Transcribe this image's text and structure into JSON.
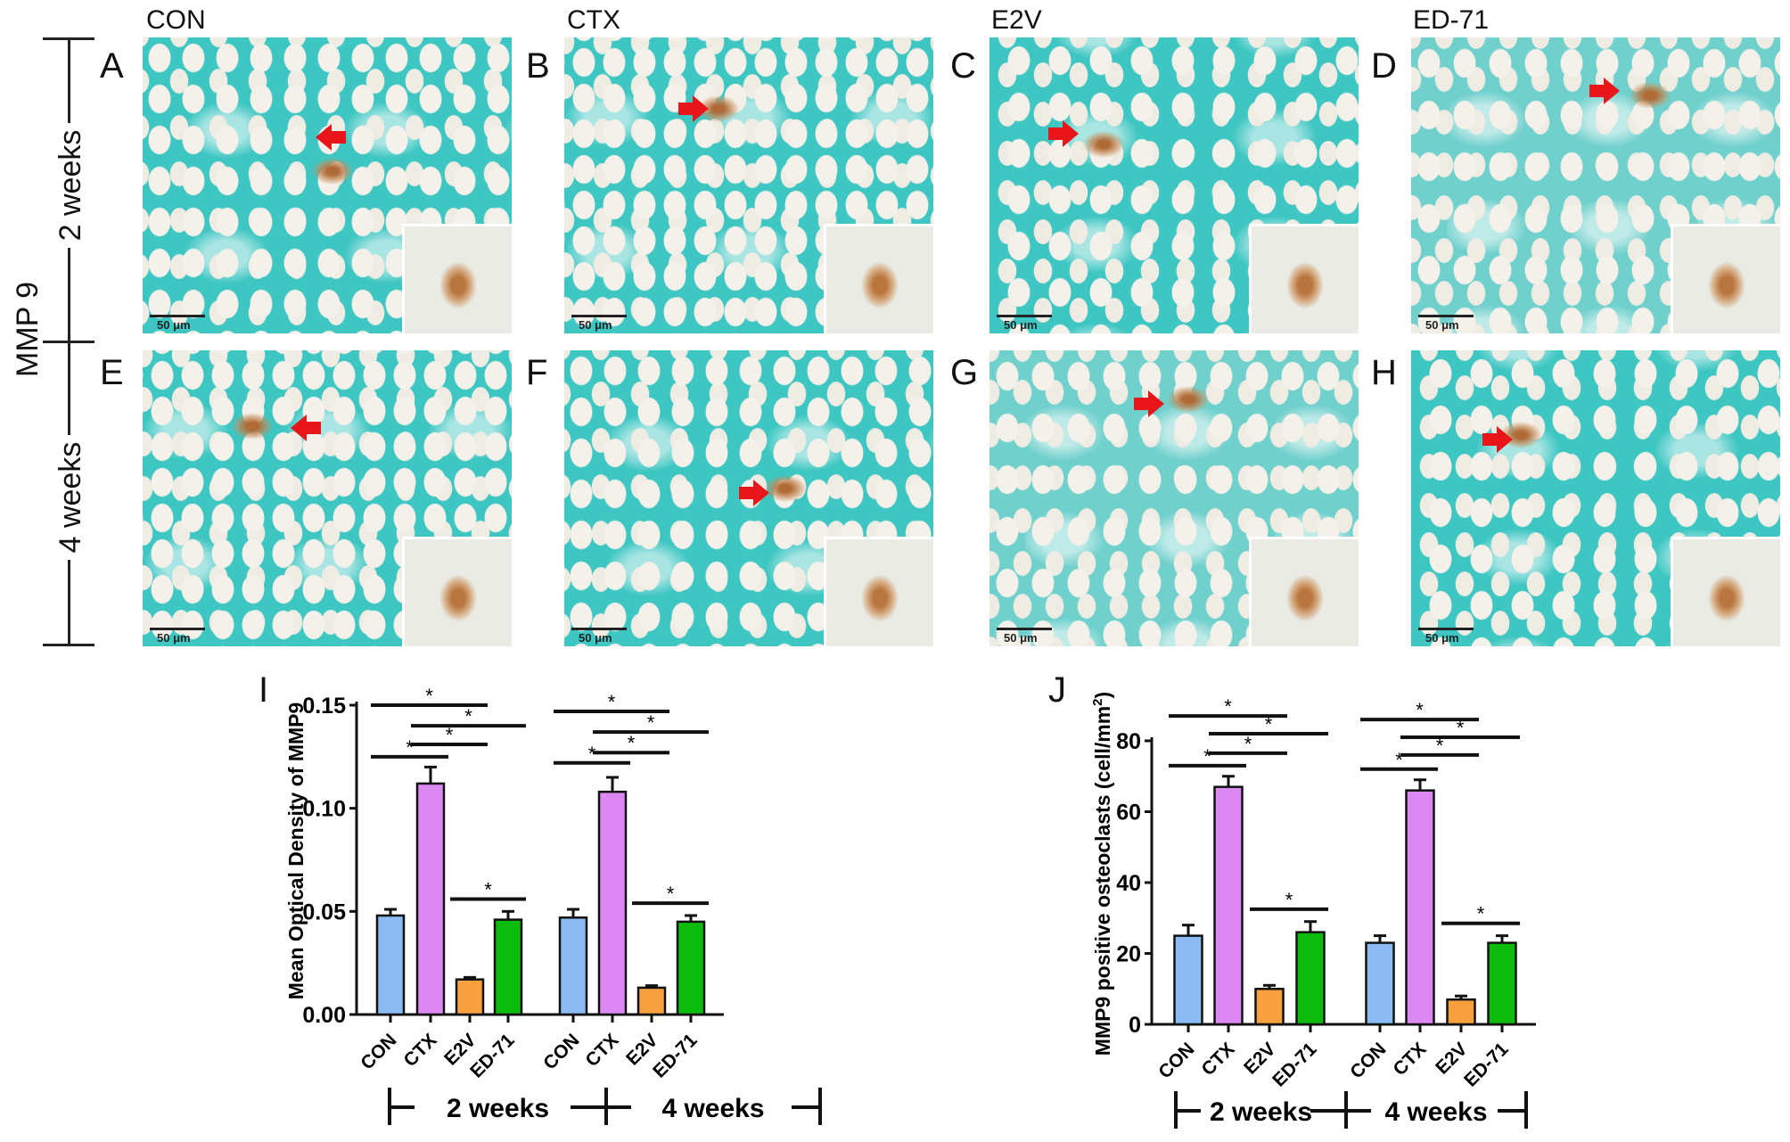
{
  "columns": [
    "CON",
    "CTX",
    "E2V",
    "ED-71"
  ],
  "row_labels": [
    "2 weeks",
    "4 weeks"
  ],
  "stain_label": "MMP 9",
  "panels": [
    {
      "letter": "A",
      "scale": "50 μm"
    },
    {
      "letter": "B",
      "scale": "50 μm"
    },
    {
      "letter": "C",
      "scale": "50 μm"
    },
    {
      "letter": "D",
      "scale": "50 μm"
    },
    {
      "letter": "E",
      "scale": "50 μm"
    },
    {
      "letter": "F",
      "scale": "50 μm"
    },
    {
      "letter": "G",
      "scale": "50 μm"
    },
    {
      "letter": "H",
      "scale": "50 μm"
    }
  ],
  "colors": {
    "CON": "#8cbaf2",
    "CTX": "#dc88f2",
    "E2V": "#f7a03e",
    "ED-71": "#0cbc0c",
    "arrow": "#e8151b"
  },
  "chart_data": [
    {
      "panel_letter": "I",
      "type": "bar",
      "ylabel": "Mean Optical Density of MMP9",
      "ylim": [
        0,
        0.15
      ],
      "yticks": [
        "0.00",
        "0.05",
        "0.10",
        "0.15"
      ],
      "ytick_values": [
        0,
        0.05,
        0.1,
        0.15
      ],
      "groups": [
        "2 weeks",
        "4 weeks"
      ],
      "categories": [
        "CON",
        "CTX",
        "E2V",
        "ED-71"
      ],
      "series": [
        {
          "name": "2 weeks",
          "values": [
            0.048,
            0.112,
            0.017,
            0.046
          ],
          "errors": [
            0.003,
            0.008,
            0.001,
            0.004
          ]
        },
        {
          "name": "4 weeks",
          "values": [
            0.047,
            0.108,
            0.013,
            0.045
          ],
          "errors": [
            0.004,
            0.007,
            0.001,
            0.003
          ]
        }
      ],
      "significance": [
        {
          "group": 0,
          "from": 0,
          "to": 2,
          "y": 0.15,
          "label": "*"
        },
        {
          "group": 0,
          "from": 1,
          "to": 3,
          "y": 0.14,
          "label": "*"
        },
        {
          "group": 0,
          "from": 1,
          "to": 2,
          "y": 0.131,
          "label": "*"
        },
        {
          "group": 0,
          "from": 0,
          "to": 1,
          "y": 0.125,
          "label": "*"
        },
        {
          "group": 0,
          "from": 2,
          "to": 3,
          "y": 0.056,
          "label": "*"
        },
        {
          "group": 1,
          "from": 0,
          "to": 2,
          "y": 0.147,
          "label": "*"
        },
        {
          "group": 1,
          "from": 1,
          "to": 3,
          "y": 0.137,
          "label": "*"
        },
        {
          "group": 1,
          "from": 1,
          "to": 2,
          "y": 0.127,
          "label": "*"
        },
        {
          "group": 1,
          "from": 0,
          "to": 1,
          "y": 0.122,
          "label": "*"
        },
        {
          "group": 1,
          "from": 2,
          "to": 3,
          "y": 0.054,
          "label": "*"
        }
      ]
    },
    {
      "panel_letter": "J",
      "type": "bar",
      "ylabel": "MMP9 positive osteoclasts (cell/mm",
      "ylabel_sup": "2",
      "ylabel_end": ")",
      "ylim": [
        0,
        80
      ],
      "yticks": [
        "0",
        "20",
        "40",
        "60",
        "80"
      ],
      "ytick_values": [
        0,
        20,
        40,
        60,
        80
      ],
      "groups": [
        "2 weeks",
        "4 weeks"
      ],
      "categories": [
        "CON",
        "CTX",
        "E2V",
        "ED-71"
      ],
      "series": [
        {
          "name": "2 weeks",
          "values": [
            25,
            67,
            10,
            26
          ],
          "errors": [
            3,
            3,
            1,
            3
          ]
        },
        {
          "name": "4 weeks",
          "values": [
            23,
            66,
            7,
            23
          ],
          "errors": [
            2,
            3,
            1,
            2
          ]
        }
      ],
      "significance": [
        {
          "group": 0,
          "from": 0,
          "to": 2,
          "y": 87,
          "label": "*"
        },
        {
          "group": 0,
          "from": 1,
          "to": 3,
          "y": 82,
          "label": "*"
        },
        {
          "group": 0,
          "from": 1,
          "to": 2,
          "y": 76.5,
          "label": "*"
        },
        {
          "group": 0,
          "from": 0,
          "to": 1,
          "y": 73,
          "label": "*"
        },
        {
          "group": 0,
          "from": 2,
          "to": 3,
          "y": 32.5,
          "label": "*"
        },
        {
          "group": 1,
          "from": 0,
          "to": 2,
          "y": 86,
          "label": "*"
        },
        {
          "group": 1,
          "from": 1,
          "to": 3,
          "y": 81,
          "label": "*"
        },
        {
          "group": 1,
          "from": 1,
          "to": 2,
          "y": 76,
          "label": "*"
        },
        {
          "group": 1,
          "from": 0,
          "to": 1,
          "y": 72,
          "label": "*"
        },
        {
          "group": 1,
          "from": 2,
          "to": 3,
          "y": 28.5,
          "label": "*"
        }
      ]
    }
  ]
}
